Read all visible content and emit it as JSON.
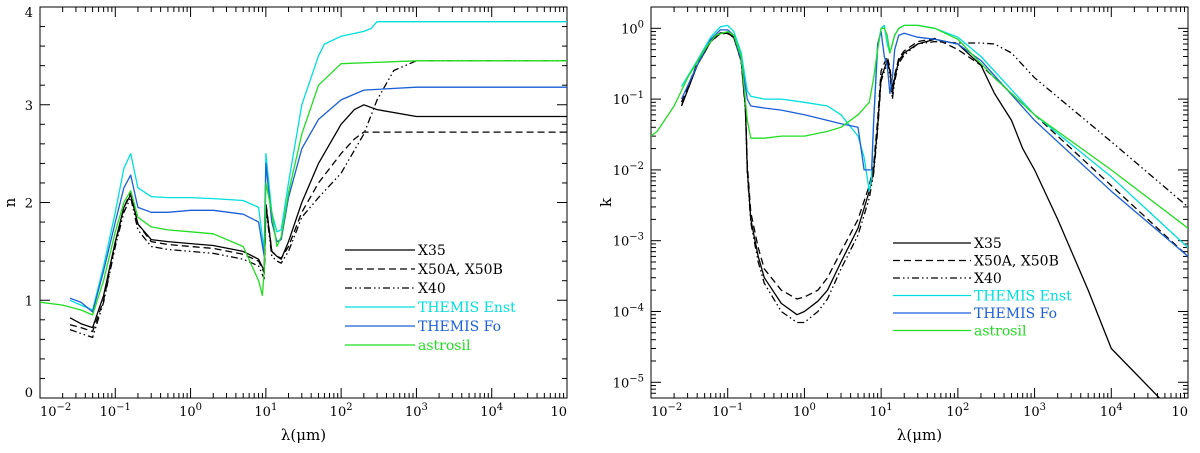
{
  "chart_data": [
    {
      "type": "line",
      "id": "n",
      "title": "",
      "xlabel": "λ(μm)",
      "ylabel": "n",
      "xscale": "log",
      "yscale": "linear",
      "xlim": [
        0.01,
        100000
      ],
      "ylim": [
        0,
        4
      ],
      "x_ticks": [
        {
          "v": 0.01,
          "base": "10",
          "exp": "−2"
        },
        {
          "v": 0.1,
          "base": "10",
          "exp": "−1"
        },
        {
          "v": 1,
          "base": "10",
          "exp": "0"
        },
        {
          "v": 10,
          "base": "10",
          "exp": "1"
        },
        {
          "v": 100,
          "base": "10",
          "exp": "2"
        },
        {
          "v": 1000,
          "base": "10",
          "exp": "3"
        },
        {
          "v": 10000,
          "base": "10",
          "exp": "4"
        },
        {
          "v": 100000,
          "base": "10",
          "exp": ""
        }
      ],
      "y_ticks": [
        {
          "v": 0,
          "label": "0"
        },
        {
          "v": 1,
          "label": "1"
        },
        {
          "v": 2,
          "label": "2"
        },
        {
          "v": 3,
          "label": "3"
        },
        {
          "v": 4,
          "label": "4"
        }
      ],
      "legend_position": "lower-right",
      "series": [
        {
          "name": "X35",
          "color": "#000000",
          "dash": "solid",
          "x": [
            0.025,
            0.035,
            0.05,
            0.07,
            0.1,
            0.13,
            0.16,
            0.2,
            0.3,
            0.5,
            1,
            2,
            5,
            8,
            9.5,
            10,
            12,
            14,
            16,
            20,
            30,
            50,
            100,
            150,
            200,
            300,
            1000,
            10000,
            100000
          ],
          "y": [
            0.82,
            0.76,
            0.72,
            1.05,
            1.6,
            1.95,
            2.08,
            1.78,
            1.62,
            1.6,
            1.58,
            1.56,
            1.5,
            1.42,
            1.3,
            1.98,
            1.5,
            1.45,
            1.42,
            1.6,
            2.0,
            2.4,
            2.8,
            2.95,
            3.0,
            2.95,
            2.88,
            2.88,
            2.88
          ]
        },
        {
          "name": "X50A, X50B",
          "color": "#000000",
          "dash": "dashed",
          "x": [
            0.025,
            0.035,
            0.05,
            0.07,
            0.1,
            0.13,
            0.16,
            0.2,
            0.3,
            0.5,
            1,
            2,
            5,
            8,
            9.5,
            10,
            12,
            14,
            16,
            20,
            30,
            50,
            100,
            150,
            200,
            300,
            1000,
            10000,
            100000
          ],
          "y": [
            0.75,
            0.72,
            0.68,
            1.0,
            1.58,
            1.95,
            2.1,
            1.78,
            1.6,
            1.57,
            1.55,
            1.53,
            1.47,
            1.4,
            1.28,
            2.0,
            1.5,
            1.45,
            1.43,
            1.55,
            1.9,
            2.2,
            2.5,
            2.65,
            2.72,
            2.72,
            2.72,
            2.72,
            2.72
          ]
        },
        {
          "name": "X40",
          "color": "#000000",
          "dash": "dash-dot-dot",
          "x": [
            0.025,
            0.035,
            0.05,
            0.07,
            0.1,
            0.13,
            0.16,
            0.2,
            0.3,
            0.5,
            1,
            2,
            5,
            8,
            9.5,
            10,
            12,
            14,
            16,
            20,
            30,
            50,
            100,
            200,
            300,
            500,
            1000,
            10000,
            100000
          ],
          "y": [
            0.7,
            0.66,
            0.62,
            0.98,
            1.55,
            1.9,
            2.05,
            1.72,
            1.55,
            1.52,
            1.5,
            1.48,
            1.42,
            1.35,
            1.22,
            1.95,
            1.45,
            1.4,
            1.38,
            1.5,
            1.85,
            2.05,
            2.3,
            2.7,
            3.05,
            3.35,
            3.45,
            3.45,
            3.45
          ]
        },
        {
          "name": "THEMIS Enst",
          "color": "#00dede",
          "dash": "solid",
          "x": [
            0.025,
            0.035,
            0.05,
            0.07,
            0.1,
            0.13,
            0.16,
            0.2,
            0.3,
            0.5,
            1,
            2,
            5,
            8,
            9.5,
            10,
            12,
            14,
            16,
            20,
            30,
            50,
            60,
            100,
            200,
            250,
            300,
            1000,
            10000,
            100000
          ],
          "y": [
            1.0,
            0.95,
            0.9,
            1.35,
            1.9,
            2.35,
            2.5,
            2.15,
            2.06,
            2.05,
            2.05,
            2.04,
            2.02,
            1.95,
            1.5,
            2.5,
            1.9,
            1.7,
            1.72,
            2.2,
            3.0,
            3.5,
            3.62,
            3.7,
            3.75,
            3.78,
            3.85,
            3.85,
            3.85,
            3.85
          ]
        },
        {
          "name": "THEMIS Fo",
          "color": "#1a5fd9",
          "dash": "solid",
          "x": [
            0.025,
            0.035,
            0.05,
            0.07,
            0.1,
            0.13,
            0.16,
            0.2,
            0.3,
            0.5,
            1,
            2,
            5,
            8,
            9.5,
            10,
            12,
            14,
            16,
            20,
            30,
            50,
            100,
            200,
            1000,
            10000,
            100000
          ],
          "y": [
            1.02,
            0.98,
            0.88,
            1.3,
            1.8,
            2.15,
            2.28,
            1.95,
            1.9,
            1.9,
            1.92,
            1.92,
            1.88,
            1.8,
            1.45,
            2.4,
            1.8,
            1.6,
            1.62,
            2.05,
            2.55,
            2.85,
            3.05,
            3.15,
            3.18,
            3.18,
            3.18
          ]
        },
        {
          "name": "astrosil",
          "color": "#22dd22",
          "dash": "solid",
          "x": [
            0.01,
            0.02,
            0.035,
            0.05,
            0.07,
            0.1,
            0.13,
            0.16,
            0.2,
            0.3,
            0.5,
            1,
            2,
            5,
            8,
            9,
            9.5,
            10,
            12,
            14,
            16,
            20,
            30,
            50,
            100,
            1000,
            10000,
            100000
          ],
          "y": [
            0.98,
            0.95,
            0.9,
            0.85,
            1.2,
            1.7,
            2.0,
            2.12,
            1.85,
            1.75,
            1.72,
            1.7,
            1.68,
            1.55,
            1.2,
            1.05,
            1.3,
            2.2,
            1.9,
            1.55,
            1.65,
            2.1,
            2.7,
            3.2,
            3.42,
            3.45,
            3.45,
            3.45
          ]
        }
      ]
    },
    {
      "type": "line",
      "id": "k",
      "title": "",
      "xlabel": "λ(μm)",
      "ylabel": "k",
      "xscale": "log",
      "yscale": "log",
      "xlim": [
        0.01,
        100000
      ],
      "ylim": [
        6e-06,
        2
      ],
      "x_ticks": [
        {
          "v": 0.01,
          "base": "10",
          "exp": "−2"
        },
        {
          "v": 0.1,
          "base": "10",
          "exp": "−1"
        },
        {
          "v": 1,
          "base": "10",
          "exp": "0"
        },
        {
          "v": 10,
          "base": "10",
          "exp": "1"
        },
        {
          "v": 100,
          "base": "10",
          "exp": "2"
        },
        {
          "v": 1000,
          "base": "10",
          "exp": "3"
        },
        {
          "v": 10000,
          "base": "10",
          "exp": "4"
        },
        {
          "v": 100000,
          "base": "10",
          "exp": ""
        }
      ],
      "y_ticks": [
        {
          "v": 1e-05,
          "base": "10",
          "exp": "−5"
        },
        {
          "v": 0.0001,
          "base": "10",
          "exp": "−4"
        },
        {
          "v": 0.001,
          "base": "10",
          "exp": "−3"
        },
        {
          "v": 0.01,
          "base": "10",
          "exp": "−2"
        },
        {
          "v": 0.1,
          "base": "10",
          "exp": "−1"
        },
        {
          "v": 1,
          "base": "10",
          "exp": "0"
        }
      ],
      "legend_position": "lower-center",
      "series": [
        {
          "name": "X35",
          "color": "#000000",
          "dash": "solid",
          "x": [
            0.025,
            0.04,
            0.06,
            0.08,
            0.1,
            0.12,
            0.15,
            0.17,
            0.18,
            0.2,
            0.25,
            0.3,
            0.5,
            0.8,
            1,
            1.5,
            2,
            3,
            5,
            7,
            8,
            9,
            10,
            12,
            13,
            14,
            15,
            17,
            20,
            30,
            50,
            100,
            200,
            300,
            500,
            700,
            1000,
            2000,
            5000,
            10000,
            50000
          ],
          "y": [
            0.08,
            0.3,
            0.65,
            0.85,
            0.85,
            0.75,
            0.35,
            0.08,
            0.01,
            0.002,
            0.0006,
            0.0003,
            0.00013,
            9e-05,
            0.0001,
            0.00014,
            0.0002,
            0.0005,
            0.0015,
            0.005,
            0.01,
            0.04,
            0.2,
            0.35,
            0.25,
            0.12,
            0.2,
            0.35,
            0.45,
            0.6,
            0.7,
            0.6,
            0.3,
            0.12,
            0.05,
            0.02,
            0.01,
            0.002,
            0.0002,
            3e-05,
            5e-06
          ]
        },
        {
          "name": "X50A, X50B",
          "color": "#000000",
          "dash": "dashed",
          "x": [
            0.025,
            0.04,
            0.06,
            0.08,
            0.1,
            0.12,
            0.15,
            0.17,
            0.18,
            0.2,
            0.25,
            0.3,
            0.5,
            0.8,
            1,
            1.5,
            2,
            3,
            5,
            7,
            8,
            9,
            10,
            12,
            13,
            14,
            15,
            17,
            20,
            30,
            50,
            100,
            200,
            500,
            1000,
            10000,
            100000
          ],
          "y": [
            0.09,
            0.32,
            0.68,
            0.86,
            0.86,
            0.75,
            0.35,
            0.08,
            0.012,
            0.0025,
            0.0008,
            0.0004,
            0.0002,
            0.00015,
            0.00016,
            0.0002,
            0.0003,
            0.0007,
            0.002,
            0.006,
            0.012,
            0.05,
            0.25,
            0.4,
            0.28,
            0.14,
            0.22,
            0.38,
            0.48,
            0.65,
            0.72,
            0.5,
            0.3,
            0.12,
            0.06,
            0.006,
            0.0006
          ]
        },
        {
          "name": "X40",
          "color": "#000000",
          "dash": "dash-dot-dot",
          "x": [
            0.025,
            0.04,
            0.06,
            0.08,
            0.1,
            0.12,
            0.15,
            0.17,
            0.18,
            0.2,
            0.25,
            0.3,
            0.5,
            0.8,
            1,
            1.5,
            2,
            3,
            5,
            7,
            8,
            9,
            10,
            12,
            13,
            14,
            15,
            17,
            20,
            30,
            50,
            100,
            200,
            300,
            500,
            1000,
            10000,
            100000
          ],
          "y": [
            0.08,
            0.3,
            0.65,
            0.84,
            0.84,
            0.74,
            0.34,
            0.07,
            0.009,
            0.0018,
            0.0005,
            0.00025,
            0.0001,
            7e-05,
            7e-05,
            0.0001,
            0.00015,
            0.0004,
            0.0012,
            0.004,
            0.009,
            0.035,
            0.18,
            0.32,
            0.22,
            0.1,
            0.18,
            0.32,
            0.42,
            0.6,
            0.65,
            0.62,
            0.62,
            0.6,
            0.45,
            0.2,
            0.025,
            0.003
          ]
        },
        {
          "name": "THEMIS Enst",
          "color": "#00dede",
          "dash": "solid",
          "x": [
            0.025,
            0.04,
            0.06,
            0.08,
            0.1,
            0.12,
            0.15,
            0.18,
            0.2,
            0.3,
            0.5,
            1,
            2,
            3,
            5,
            6,
            7,
            7.5,
            8,
            9,
            10,
            11,
            12,
            13,
            14,
            15,
            17,
            20,
            30,
            50,
            100,
            200,
            1000,
            10000,
            100000
          ],
          "y": [
            0.15,
            0.35,
            0.75,
            1.05,
            1.1,
            0.9,
            0.45,
            0.13,
            0.11,
            0.1,
            0.1,
            0.09,
            0.08,
            0.06,
            0.03,
            0.015,
            0.005,
            0.008,
            0.05,
            0.5,
            1.0,
            1.1,
            0.6,
            0.45,
            0.6,
            0.8,
            1.0,
            1.1,
            1.1,
            1.0,
            0.75,
            0.4,
            0.06,
            0.008,
            0.0008
          ]
        },
        {
          "name": "THEMIS Fo",
          "color": "#1a5fd9",
          "dash": "solid",
          "x": [
            0.025,
            0.04,
            0.06,
            0.08,
            0.1,
            0.12,
            0.15,
            0.18,
            0.2,
            0.3,
            0.5,
            1,
            2,
            3,
            5,
            6,
            7,
            7.5,
            8,
            9,
            10,
            11,
            12,
            13,
            14,
            15,
            17,
            20,
            30,
            50,
            100,
            200,
            1000,
            10000,
            100000
          ],
          "y": [
            0.1,
            0.3,
            0.7,
            0.95,
            0.95,
            0.8,
            0.35,
            0.1,
            0.08,
            0.075,
            0.07,
            0.06,
            0.05,
            0.045,
            0.04,
            0.01,
            0.01,
            0.01,
            0.05,
            0.6,
            0.9,
            0.4,
            0.3,
            0.12,
            0.2,
            0.5,
            0.8,
            0.85,
            0.75,
            0.7,
            0.6,
            0.35,
            0.05,
            0.005,
            0.0006
          ]
        },
        {
          "name": "astrosil",
          "color": "#22dd22",
          "dash": "solid",
          "x": [
            0.01,
            0.012,
            0.015,
            0.02,
            0.03,
            0.05,
            0.07,
            0.1,
            0.12,
            0.15,
            0.18,
            0.2,
            0.3,
            0.5,
            1,
            2,
            3,
            5,
            7,
            8,
            9,
            10,
            11,
            12,
            13,
            14,
            15,
            17,
            20,
            30,
            50,
            100,
            300,
            1000,
            10000,
            100000
          ],
          "y": [
            0.03,
            0.035,
            0.05,
            0.08,
            0.2,
            0.5,
            0.8,
            0.9,
            0.8,
            0.4,
            0.05,
            0.028,
            0.028,
            0.03,
            0.03,
            0.035,
            0.04,
            0.06,
            0.09,
            0.2,
            0.5,
            1.0,
            1.0,
            0.8,
            0.45,
            0.6,
            0.8,
            1.0,
            1.1,
            1.1,
            1.0,
            0.7,
            0.2,
            0.06,
            0.01,
            0.0015
          ]
        }
      ]
    }
  ]
}
